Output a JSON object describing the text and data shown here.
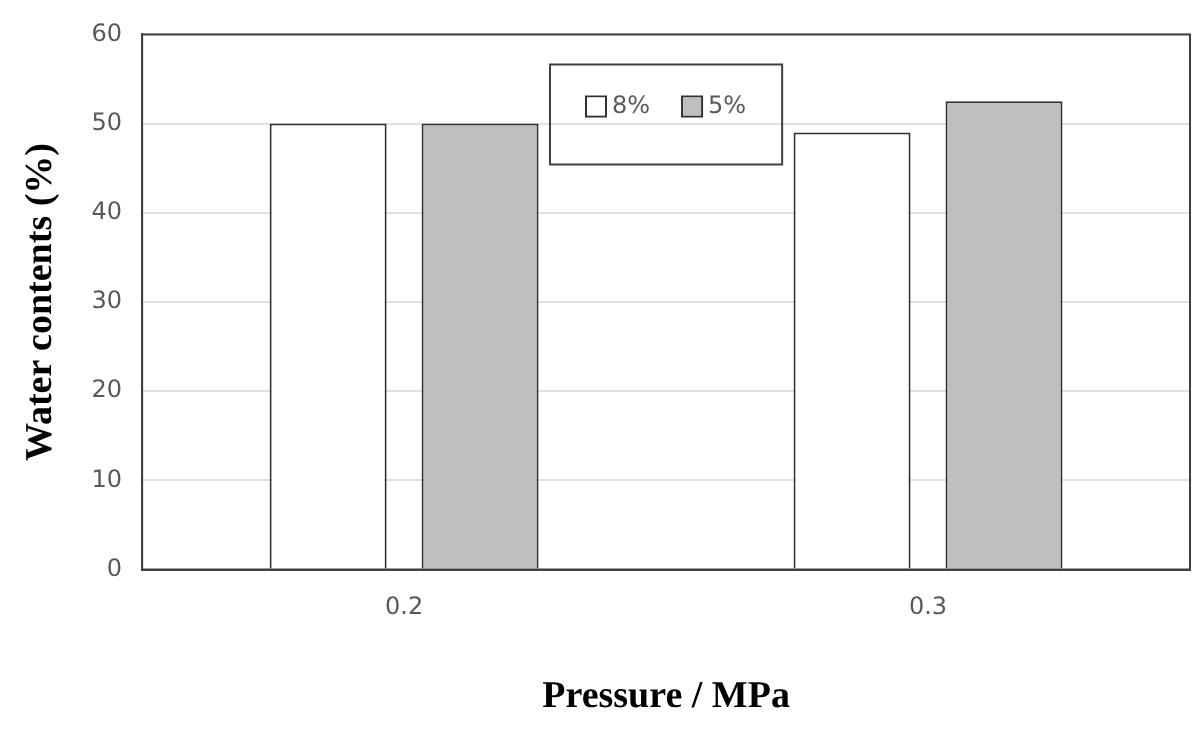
{
  "chart_data": {
    "type": "bar",
    "xlabel": "Pressure / MPa",
    "ylabel": "Water contents (%)",
    "categories": [
      "0.2",
      "0.3"
    ],
    "series": [
      {
        "name": "8%",
        "color": "#ffffff",
        "values": [
          50,
          49
        ]
      },
      {
        "name": "5%",
        "color": "#bfbfbf",
        "values": [
          50,
          52.5
        ]
      }
    ],
    "ylim": [
      0,
      60
    ],
    "yticks": [
      0,
      10,
      20,
      30,
      40,
      50,
      60
    ],
    "grid": "y",
    "legend": "top"
  }
}
